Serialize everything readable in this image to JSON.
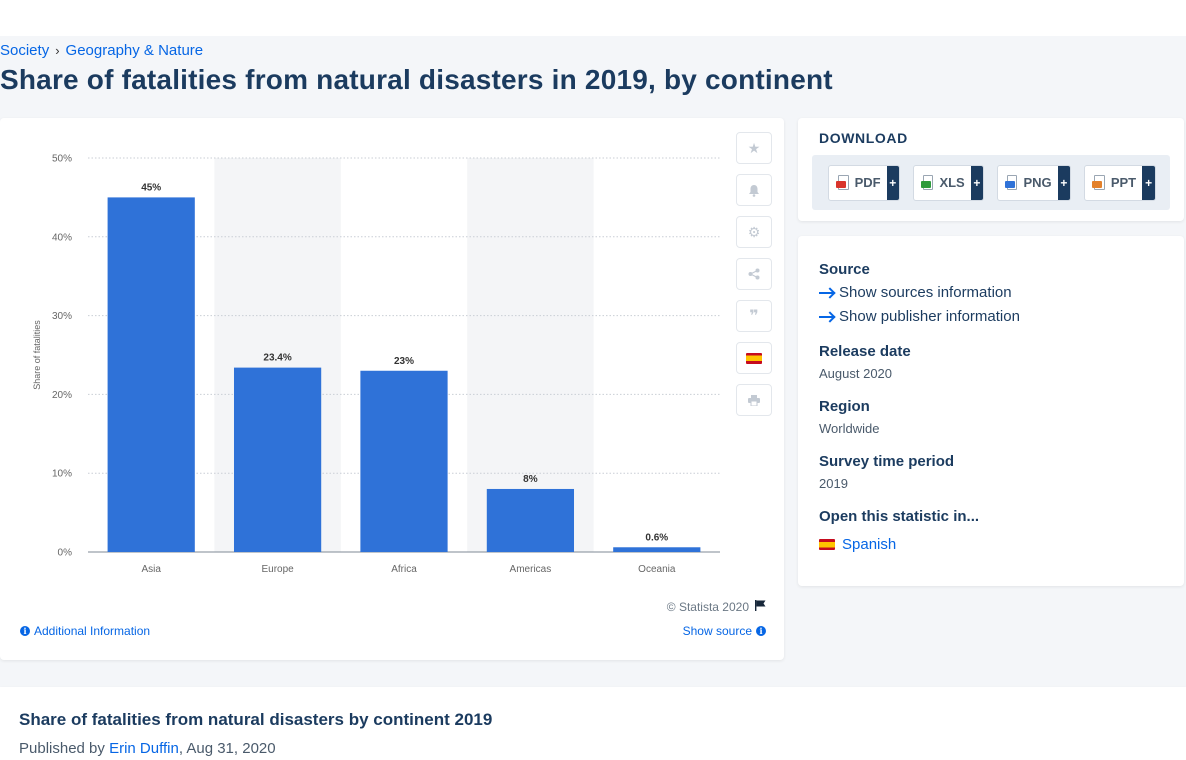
{
  "breadcrumb": {
    "item1": "Society",
    "item2": "Geography & Nature"
  },
  "page": {
    "title": "Share of fatalities from natural disasters in 2019, by continent"
  },
  "chart_data": {
    "type": "bar",
    "categories": [
      "Asia",
      "Europe",
      "Africa",
      "Americas",
      "Oceania"
    ],
    "values": [
      45,
      23.4,
      23,
      8,
      0.6
    ],
    "value_labels": [
      "45%",
      "23.4%",
      "23%",
      "8%",
      "0.6%"
    ],
    "ylabel": "Share of fatalities",
    "yticks": [
      "0%",
      "10%",
      "20%",
      "30%",
      "40%",
      "50%"
    ],
    "ylim": [
      0,
      50
    ],
    "grid": true,
    "bar_color": "#2f72d8"
  },
  "chart_footer": {
    "copyright": "© Statista 2020",
    "additional_info": "Additional Information",
    "show_source": "Show source"
  },
  "tools": [
    "star-icon",
    "bell-icon",
    "gear-icon",
    "share-icon",
    "quote-icon",
    "spain-flag-icon",
    "print-icon"
  ],
  "download": {
    "title": "DOWNLOAD",
    "buttons": [
      {
        "label": "PDF",
        "icon": "pdf-file-icon",
        "color": "#d9342b"
      },
      {
        "label": "XLS",
        "icon": "xls-file-icon",
        "color": "#2e9a3c"
      },
      {
        "label": "PNG",
        "icon": "png-file-icon",
        "color": "#2f72d8"
      },
      {
        "label": "PPT",
        "icon": "ppt-file-icon",
        "color": "#e3812b"
      }
    ],
    "plus": "+"
  },
  "meta": {
    "source_label": "Source",
    "show_sources": "Show sources information",
    "show_publisher": "Show publisher information",
    "release_label": "Release date",
    "release_value": "August 2020",
    "region_label": "Region",
    "region_value": "Worldwide",
    "period_label": "Survey time period",
    "period_value": "2019",
    "open_label": "Open this statistic in...",
    "open_language": "Spanish"
  },
  "bottom": {
    "title": "Share of fatalities from natural disasters by continent 2019",
    "published_prefix": "Published by",
    "author": "Erin Duffin",
    "date": ", Aug 31, 2020"
  }
}
